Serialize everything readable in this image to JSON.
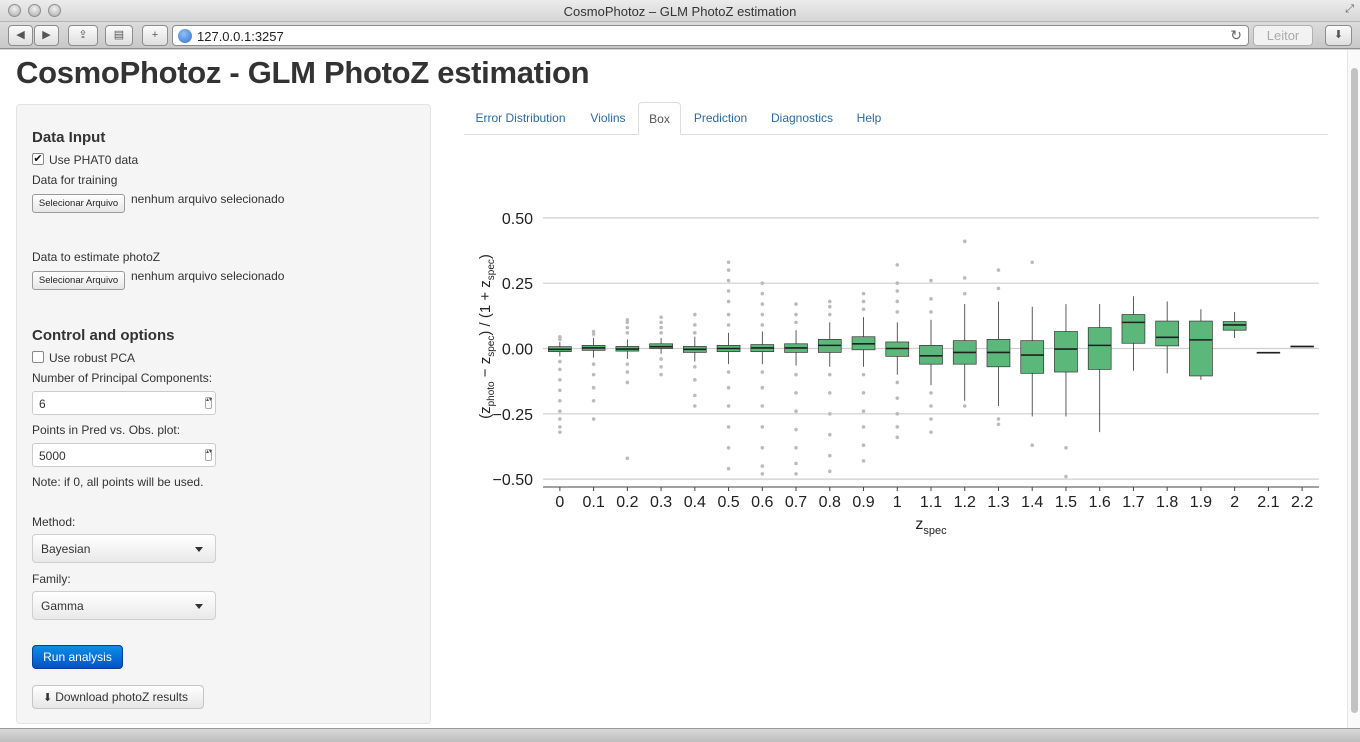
{
  "window": {
    "title": "CosmoPhotoz – GLM PhotoZ estimation"
  },
  "browser": {
    "url": "127.0.0.1:3257",
    "reader_label": "Leitor"
  },
  "page": {
    "title": "CosmoPhotoz - GLM PhotoZ estimation"
  },
  "sidebar": {
    "data_input_heading": "Data Input",
    "use_phat0_label": "Use PHAT0 data",
    "use_phat0_checked": true,
    "training_label": "Data for training",
    "file_button_label": "Selecionar Arquivo",
    "no_file_text": "nenhum arquivo selecionado",
    "estimate_label": "Data to estimate photoZ",
    "control_heading": "Control and options",
    "robust_pca_label": "Use robust PCA",
    "robust_pca_checked": false,
    "npc_label": "Number of Principal Components:",
    "npc_value": "6",
    "points_label": "Points in Pred vs. Obs. plot:",
    "points_value": "5000",
    "note": "Note: if 0, all points will be used.",
    "method_label": "Method:",
    "method_value": "Bayesian",
    "family_label": "Family:",
    "family_value": "Gamma",
    "run_label": "Run analysis",
    "download_label": "Download photoZ results"
  },
  "tabs": [
    {
      "label": "Error Distribution",
      "active": false
    },
    {
      "label": "Violins",
      "active": false
    },
    {
      "label": "Box",
      "active": true
    },
    {
      "label": "Prediction",
      "active": false
    },
    {
      "label": "Diagnostics",
      "active": false
    },
    {
      "label": "Help",
      "active": false
    }
  ],
  "chart_data": {
    "type": "box",
    "xlabel": "z_spec",
    "ylabel": "(z_photo − z_spec) / (1 + z_spec)",
    "ylim": [
      -0.53,
      0.53
    ],
    "yticks": [
      "0.50",
      "0.25",
      "0.00",
      "−0.25",
      "−0.50"
    ],
    "ytick_values": [
      0.5,
      0.25,
      0.0,
      -0.25,
      -0.5
    ],
    "box_fill": "#5cb87a",
    "outlier_color": "#bbbbbb",
    "grid": true,
    "categories": [
      "0",
      "0.1",
      "0.2",
      "0.3",
      "0.4",
      "0.5",
      "0.6",
      "0.7",
      "0.8",
      "0.9",
      "1",
      "1.1",
      "1.2",
      "1.3",
      "1.4",
      "1.5",
      "1.6",
      "1.7",
      "1.8",
      "1.9",
      "2",
      "2.1",
      "2.2"
    ],
    "boxes": [
      {
        "q1": -0.012,
        "median": -0.003,
        "q3": 0.007,
        "wlo": -0.03,
        "whi": 0.025,
        "outliers": [
          0.045,
          0.035,
          -0.05,
          -0.08,
          -0.12,
          -0.16,
          -0.2,
          -0.24,
          -0.27,
          -0.3,
          -0.32
        ]
      },
      {
        "q1": -0.007,
        "median": 0.002,
        "q3": 0.012,
        "wlo": -0.035,
        "whi": 0.04,
        "outliers": [
          0.055,
          0.065,
          -0.06,
          -0.1,
          -0.15,
          -0.2,
          -0.27
        ]
      },
      {
        "q1": -0.01,
        "median": -0.002,
        "q3": 0.008,
        "wlo": -0.04,
        "whi": 0.035,
        "outliers": [
          0.06,
          0.08,
          0.1,
          0.11,
          -0.06,
          -0.09,
          -0.13,
          -0.42
        ]
      },
      {
        "q1": 0.0,
        "median": 0.007,
        "q3": 0.018,
        "wlo": -0.02,
        "whi": 0.04,
        "outliers": [
          0.06,
          0.08,
          0.1,
          0.12,
          -0.04,
          -0.07,
          -0.1
        ]
      },
      {
        "q1": -0.015,
        "median": -0.003,
        "q3": 0.008,
        "wlo": -0.05,
        "whi": 0.045,
        "outliers": [
          0.06,
          0.09,
          0.13,
          -0.07,
          -0.12,
          -0.18,
          -0.22
        ]
      },
      {
        "q1": -0.012,
        "median": 0.0,
        "q3": 0.012,
        "wlo": -0.06,
        "whi": 0.06,
        "outliers": [
          0.09,
          0.13,
          0.18,
          0.22,
          0.26,
          0.3,
          0.33,
          -0.09,
          -0.15,
          -0.22,
          -0.3,
          -0.38,
          -0.46
        ]
      },
      {
        "q1": -0.012,
        "median": 0.002,
        "q3": 0.015,
        "wlo": -0.06,
        "whi": 0.065,
        "outliers": [
          0.09,
          0.13,
          0.17,
          0.21,
          0.25,
          -0.09,
          -0.15,
          -0.22,
          -0.3,
          -0.38,
          -0.45,
          -0.48
        ]
      },
      {
        "q1": -0.015,
        "median": 0.002,
        "q3": 0.018,
        "wlo": -0.065,
        "whi": 0.07,
        "outliers": [
          0.1,
          0.13,
          0.17,
          -0.1,
          -0.17,
          -0.24,
          -0.31,
          -0.38,
          -0.44,
          -0.48
        ]
      },
      {
        "q1": -0.015,
        "median": 0.012,
        "q3": 0.035,
        "wlo": -0.07,
        "whi": 0.1,
        "outliers": [
          0.13,
          0.16,
          0.18,
          -0.1,
          -0.17,
          -0.25,
          -0.33,
          -0.41,
          -0.47
        ]
      },
      {
        "q1": -0.005,
        "median": 0.018,
        "q3": 0.045,
        "wlo": -0.07,
        "whi": 0.12,
        "outliers": [
          0.15,
          0.18,
          0.21,
          -0.1,
          -0.17,
          -0.24,
          -0.3,
          -0.37,
          -0.43
        ]
      },
      {
        "q1": -0.03,
        "median": 0.0,
        "q3": 0.025,
        "wlo": -0.1,
        "whi": 0.1,
        "outliers": [
          0.14,
          0.18,
          0.22,
          0.25,
          0.32,
          -0.13,
          -0.19,
          -0.25,
          -0.3,
          -0.34
        ]
      },
      {
        "q1": -0.06,
        "median": -0.028,
        "q3": 0.012,
        "wlo": -0.14,
        "whi": 0.11,
        "outliers": [
          0.14,
          0.19,
          0.26,
          -0.17,
          -0.22,
          -0.27,
          -0.32
        ]
      },
      {
        "q1": -0.06,
        "median": -0.015,
        "q3": 0.03,
        "wlo": -0.2,
        "whi": 0.17,
        "outliers": [
          0.21,
          0.27,
          0.41,
          -0.22
        ]
      },
      {
        "q1": -0.07,
        "median": -0.015,
        "q3": 0.035,
        "wlo": -0.22,
        "whi": 0.18,
        "outliers": [
          0.23,
          0.3,
          -0.27,
          -0.29
        ]
      },
      {
        "q1": -0.095,
        "median": -0.025,
        "q3": 0.03,
        "wlo": -0.26,
        "whi": 0.16,
        "outliers": [
          0.33,
          -0.37
        ]
      },
      {
        "q1": -0.09,
        "median": -0.002,
        "q3": 0.065,
        "wlo": -0.26,
        "whi": 0.17,
        "outliers": [
          -0.38,
          -0.49
        ]
      },
      {
        "q1": -0.08,
        "median": 0.012,
        "q3": 0.08,
        "wlo": -0.32,
        "whi": 0.17,
        "outliers": []
      },
      {
        "q1": 0.02,
        "median": 0.1,
        "q3": 0.13,
        "wlo": -0.085,
        "whi": 0.2,
        "outliers": []
      },
      {
        "q1": 0.01,
        "median": 0.043,
        "q3": 0.105,
        "wlo": -0.095,
        "whi": 0.18,
        "outliers": []
      },
      {
        "q1": -0.105,
        "median": 0.033,
        "q3": 0.105,
        "wlo": -0.12,
        "whi": 0.15,
        "outliers": []
      },
      {
        "q1": 0.07,
        "median": 0.09,
        "q3": 0.103,
        "wlo": 0.04,
        "whi": 0.14,
        "outliers": []
      },
      {
        "q1": -0.016,
        "median": -0.016,
        "q3": -0.016,
        "wlo": -0.016,
        "whi": -0.016,
        "outliers": []
      },
      {
        "q1": 0.008,
        "median": 0.008,
        "q3": 0.008,
        "wlo": 0.008,
        "whi": 0.008,
        "outliers": []
      }
    ]
  }
}
